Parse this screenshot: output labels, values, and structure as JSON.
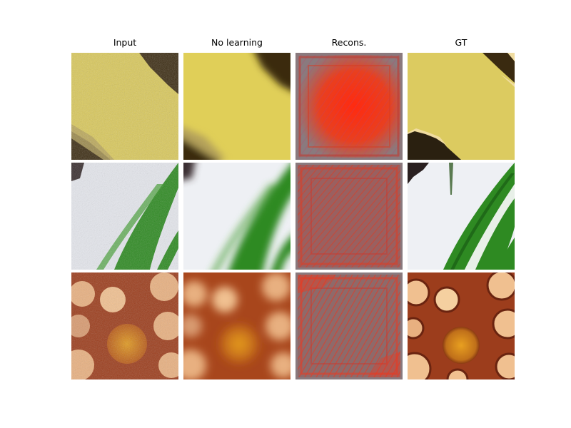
{
  "figure": {
    "column_titles": [
      "Input",
      "No learning",
      "Recons.",
      "GT"
    ],
    "rows": [
      {
        "content": "yellow wing patch with dark stripes",
        "colors": {
          "main": "#d9c85a",
          "main_light": "#e6d86a",
          "dark": "#3a2a10",
          "edge": "#b3a05a"
        }
      },
      {
        "content": "white background with green leaf blades",
        "colors": {
          "main": "#e8eaf0",
          "leaf": "#2e8a22",
          "leaf_dark": "#1f6a18",
          "dark": "#3a2f30"
        }
      },
      {
        "content": "brown texture with light circular spots and orange center",
        "colors": {
          "main": "#9c3d1c",
          "spot": "#f0c090",
          "center": "#d8901c",
          "dark": "#6a2410"
        }
      }
    ],
    "recons_colors": {
      "base": "#a84a4a",
      "red": "#ff2a10",
      "gray": "#8a7a7e"
    }
  }
}
